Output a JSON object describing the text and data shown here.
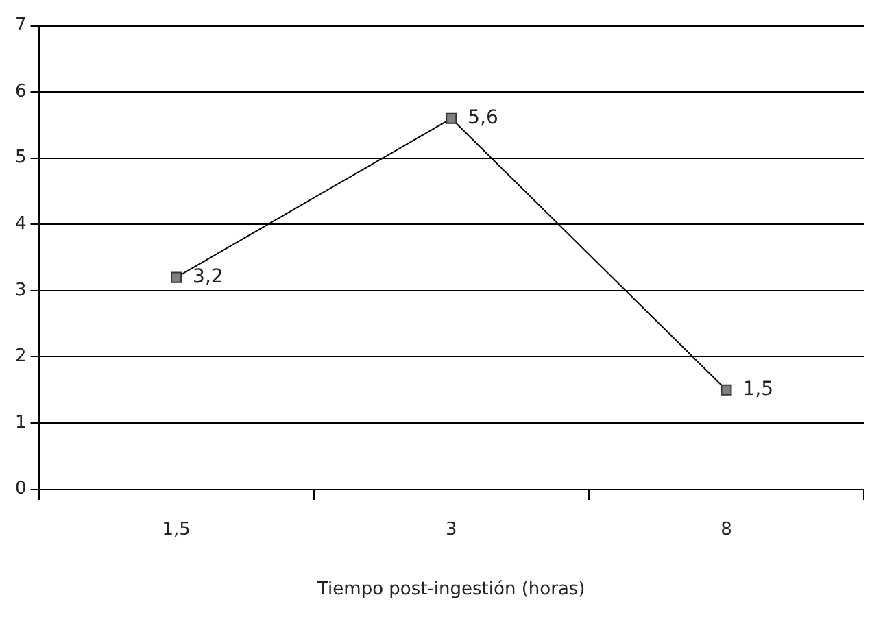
{
  "chart_data": {
    "type": "line",
    "xlabel": "Tiempo post-ingestión (horas)",
    "categories": [
      "1,5",
      "3",
      "8"
    ],
    "series": [
      {
        "color": "#000000",
        "values": [
          3.2,
          5.6,
          1.5
        ],
        "value_labels": [
          "3,2",
          "5,6",
          "1,5"
        ]
      }
    ],
    "ylim": [
      0,
      7
    ],
    "yticks": [
      0,
      1,
      2,
      3,
      4,
      5,
      6,
      7
    ],
    "grid": "y",
    "legend": false,
    "marker": "square",
    "line_style": "solid"
  }
}
